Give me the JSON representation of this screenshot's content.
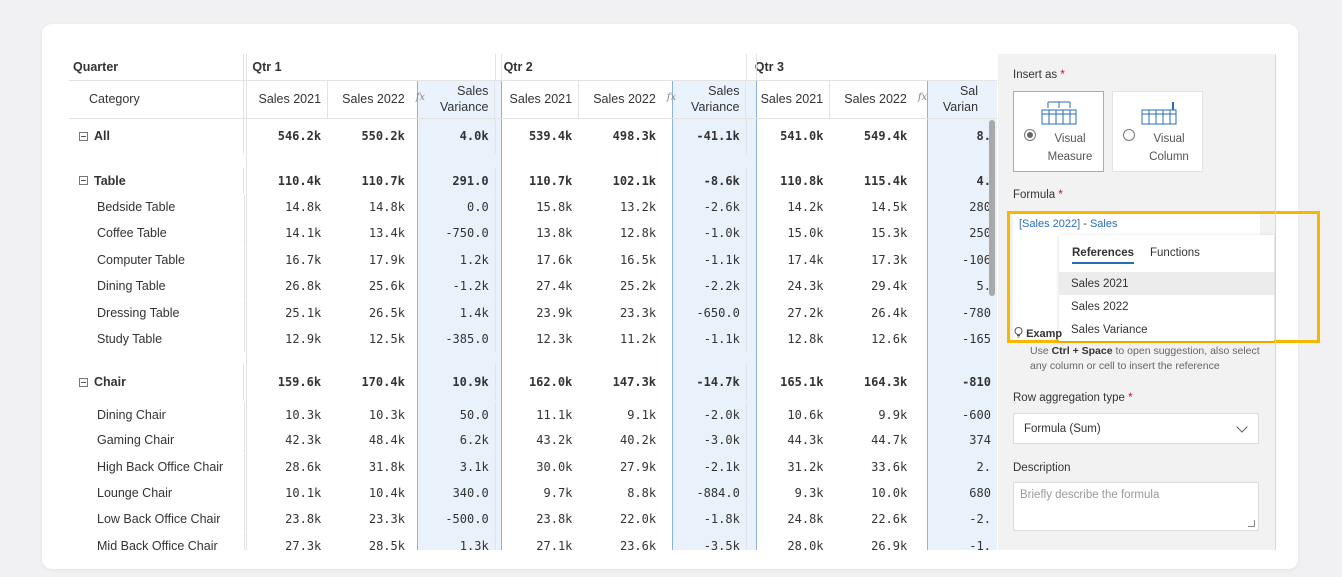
{
  "grid": {
    "header": {
      "quarter_label": "Quarter",
      "category_label": "Category",
      "quarters": [
        "Qtr 1",
        "Qtr 2",
        "Qtr 3"
      ],
      "sales_2021": "Sales 2021",
      "sales_2022": "Sales 2022",
      "variance_line1": "Sales",
      "variance_line2": "Variance",
      "variance_q3_line1": "Sal",
      "variance_q3_line2": "Varian"
    },
    "rows": [
      {
        "label": "All",
        "group": true,
        "v": [
          "546.2k",
          "550.2k",
          "4.0k",
          "539.4k",
          "498.3k",
          "-41.1k",
          "541.0k",
          "549.4k",
          "8."
        ]
      },
      {
        "label": "Table",
        "group": true,
        "v": [
          "110.4k",
          "110.7k",
          "291.0",
          "110.7k",
          "102.1k",
          "-8.6k",
          "110.8k",
          "115.4k",
          "4."
        ]
      },
      {
        "label": "Bedside Table",
        "group": false,
        "v": [
          "14.8k",
          "14.8k",
          "0.0",
          "15.8k",
          "13.2k",
          "-2.6k",
          "14.2k",
          "14.5k",
          "280"
        ]
      },
      {
        "label": "Coffee Table",
        "group": false,
        "v": [
          "14.1k",
          "13.4k",
          "-750.0",
          "13.8k",
          "12.8k",
          "-1.0k",
          "15.0k",
          "15.3k",
          "250"
        ]
      },
      {
        "label": "Computer Table",
        "group": false,
        "v": [
          "16.7k",
          "17.9k",
          "1.2k",
          "17.6k",
          "16.5k",
          "-1.1k",
          "17.4k",
          "17.3k",
          "-106"
        ]
      },
      {
        "label": "Dining Table",
        "group": false,
        "v": [
          "26.8k",
          "25.6k",
          "-1.2k",
          "27.4k",
          "25.2k",
          "-2.2k",
          "24.3k",
          "29.4k",
          "5."
        ]
      },
      {
        "label": "Dressing Table",
        "group": false,
        "v": [
          "25.1k",
          "26.5k",
          "1.4k",
          "23.9k",
          "23.3k",
          "-650.0",
          "27.2k",
          "26.4k",
          "-780"
        ]
      },
      {
        "label": "Study Table",
        "group": false,
        "v": [
          "12.9k",
          "12.5k",
          "-385.0",
          "12.3k",
          "11.2k",
          "-1.1k",
          "12.8k",
          "12.6k",
          "-165"
        ]
      },
      {
        "label": "Chair",
        "group": true,
        "v": [
          "159.6k",
          "170.4k",
          "10.9k",
          "162.0k",
          "147.3k",
          "-14.7k",
          "165.1k",
          "164.3k",
          "-810"
        ]
      },
      {
        "label": "Dining Chair",
        "group": false,
        "v": [
          "10.3k",
          "10.3k",
          "50.0",
          "11.1k",
          "9.1k",
          "-2.0k",
          "10.6k",
          "9.9k",
          "-600"
        ]
      },
      {
        "label": "Gaming Chair",
        "group": false,
        "v": [
          "42.3k",
          "48.4k",
          "6.2k",
          "43.2k",
          "40.2k",
          "-3.0k",
          "44.3k",
          "44.7k",
          "374"
        ]
      },
      {
        "label": "High Back Office Chair",
        "group": false,
        "v": [
          "28.6k",
          "31.8k",
          "3.1k",
          "30.0k",
          "27.9k",
          "-2.1k",
          "31.2k",
          "33.6k",
          "2."
        ]
      },
      {
        "label": "Lounge Chair",
        "group": false,
        "v": [
          "10.1k",
          "10.4k",
          "340.0",
          "9.7k",
          "8.8k",
          "-884.0",
          "9.3k",
          "10.0k",
          "680"
        ]
      },
      {
        "label": "Low Back Office Chair",
        "group": false,
        "v": [
          "23.8k",
          "23.3k",
          "-500.0",
          "23.8k",
          "22.0k",
          "-1.8k",
          "24.8k",
          "22.6k",
          "-2."
        ]
      },
      {
        "label": "Mid Back Office Chair",
        "group": false,
        "v": [
          "27.3k",
          "28.5k",
          "1.3k",
          "27.1k",
          "23.6k",
          "-3.5k",
          "28.0k",
          "26.9k",
          "-1."
        ]
      }
    ]
  },
  "panel": {
    "insert_as_label": "Insert as",
    "required_mark": "*",
    "option_measure": "Visual Measure",
    "option_column": "Visual Column",
    "formula_label": "Formula",
    "formula_ref": "[Sales 2022]",
    "formula_op": " - ",
    "formula_partial": "Sales",
    "tabs": [
      "References",
      "Functions"
    ],
    "suggestions": [
      "Sales 2021",
      "Sales 2022",
      "Sales Variance"
    ],
    "example_label": "Examp",
    "hint_pre": "Use ",
    "hint_keys": "Ctrl + Space",
    "hint_post": " to open suggestion, also select any column or cell to insert the reference",
    "row_agg_label": "Row aggregation type",
    "row_agg_value": "Formula (Sum)",
    "description_label": "Description",
    "description_placeholder": "Briefly describe the formula"
  },
  "colors": {
    "accent": "#2a6db8",
    "highlight_border": "#f5b800",
    "variance_bg": "#e9f1fb"
  }
}
